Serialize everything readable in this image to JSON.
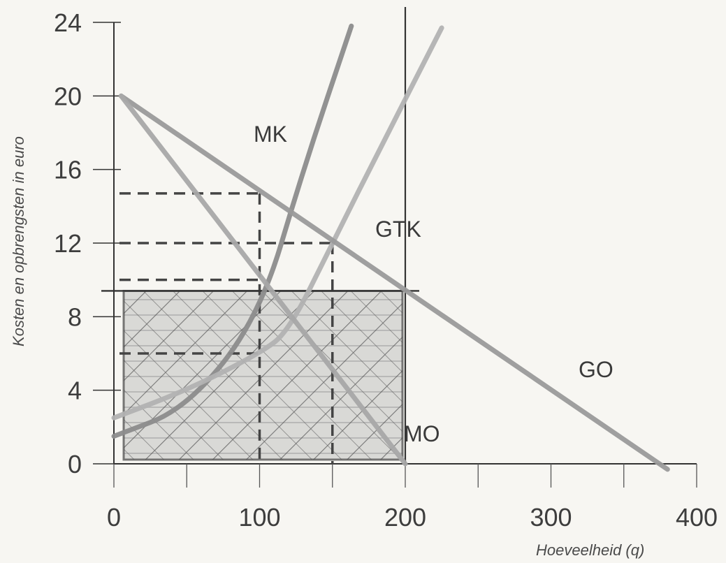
{
  "chart_data": {
    "type": "line",
    "xlabel": "Hoeveelheid (q)",
    "ylabel": "Kosten en opbrengsten in euro",
    "xlim": [
      0,
      400
    ],
    "ylim": [
      0,
      24
    ],
    "x_ticks": [
      "0",
      "100",
      "200",
      "300",
      "400"
    ],
    "y_ticks": [
      "0",
      "4",
      "8",
      "12",
      "16",
      "20",
      "24"
    ],
    "series": [
      {
        "name": "MK",
        "points": [
          [
            0,
            1.5
          ],
          [
            50,
            3
          ],
          [
            100,
            8
          ],
          [
            130,
            16
          ],
          [
            163,
            23.8
          ]
        ],
        "color": "#8c8c8c"
      },
      {
        "name": "GTK",
        "points": [
          [
            0,
            2.5
          ],
          [
            50,
            4
          ],
          [
            100,
            6
          ],
          [
            120,
            7.2
          ],
          [
            150,
            12
          ],
          [
            185,
            17.5
          ],
          [
            225,
            23.7
          ]
        ],
        "color": "#b2b2b2"
      },
      {
        "name": "GO",
        "points": [
          [
            5,
            20
          ],
          [
            380,
            -0.3
          ]
        ],
        "color": "#9a9a9a"
      },
      {
        "name": "MO",
        "points": [
          [
            5,
            20
          ],
          [
            200,
            0
          ]
        ],
        "color": "#a8a8a8"
      }
    ],
    "reference_lines": [
      {
        "type": "vertical",
        "x": 200
      },
      {
        "type": "horizontal",
        "y": 9.4
      }
    ],
    "dashed_guides": [
      {
        "y": 14.7,
        "x_to": 100
      },
      {
        "y": 12,
        "x_to": 150
      },
      {
        "y": 10,
        "x_to": 100
      },
      {
        "y": 6,
        "x_to": 100
      },
      {
        "x": 100,
        "y_to": 14.7
      },
      {
        "x": 150,
        "y_to": 12
      }
    ],
    "shaded_region": {
      "x": [
        0,
        200
      ],
      "y": [
        0,
        9.4
      ],
      "fill": "hatched"
    },
    "label_MO_visible": "MO"
  }
}
